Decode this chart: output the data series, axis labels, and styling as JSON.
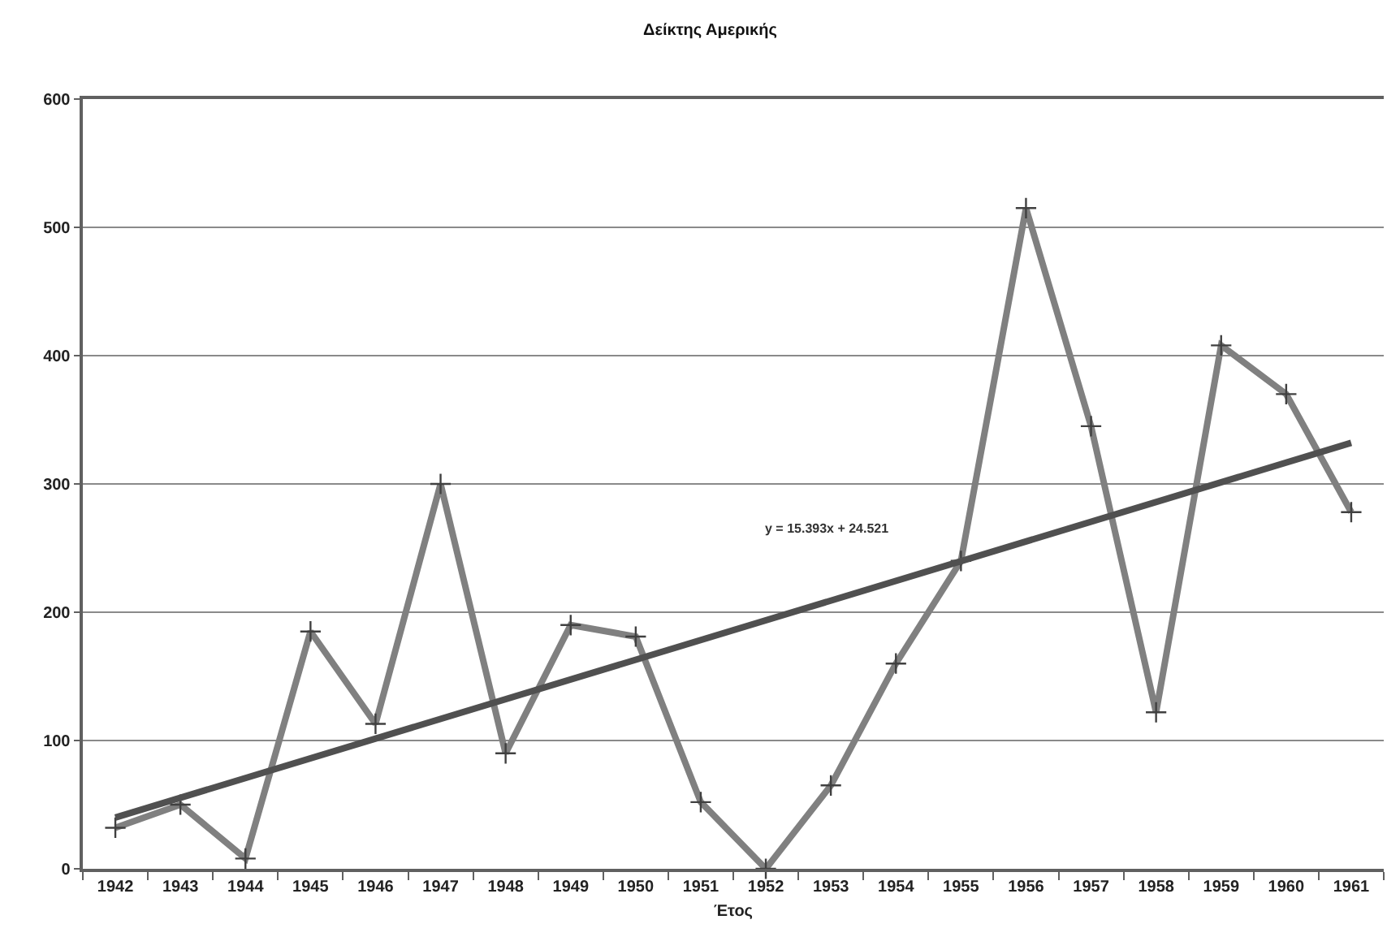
{
  "chart_data": {
    "type": "line",
    "title": "Δείκτης Αμερικής",
    "xlabel": "Έτος",
    "x": [
      1942,
      1943,
      1944,
      1945,
      1946,
      1947,
      1948,
      1949,
      1950,
      1951,
      1952,
      1953,
      1954,
      1955,
      1956,
      1957,
      1958,
      1959,
      1960,
      1961
    ],
    "series": [
      {
        "color": "#808080",
        "values": [
          32,
          50,
          8,
          185,
          113,
          300,
          90,
          190,
          181,
          52,
          0,
          65,
          160,
          240,
          515,
          345,
          122,
          408,
          370,
          278
        ]
      },
      {
        "type": "line",
        "color": "#505050",
        "marker": "none",
        "x": [
          1942,
          1961
        ],
        "values": [
          40,
          332
        ]
      }
    ],
    "xlim": [
      1941.5,
      1961.5
    ],
    "xticks": [
      1942,
      1943,
      1944,
      1945,
      1946,
      1947,
      1948,
      1949,
      1950,
      1951,
      1952,
      1953,
      1954,
      1955,
      1956,
      1957,
      1958,
      1959,
      1960,
      1961
    ],
    "ylim": [
      0,
      600
    ],
    "yticks": [
      0,
      100,
      200,
      300,
      400,
      500,
      600
    ],
    "grid": "y",
    "marker": "cross",
    "annotations": [
      "y = 15.393x + 24.521"
    ]
  }
}
